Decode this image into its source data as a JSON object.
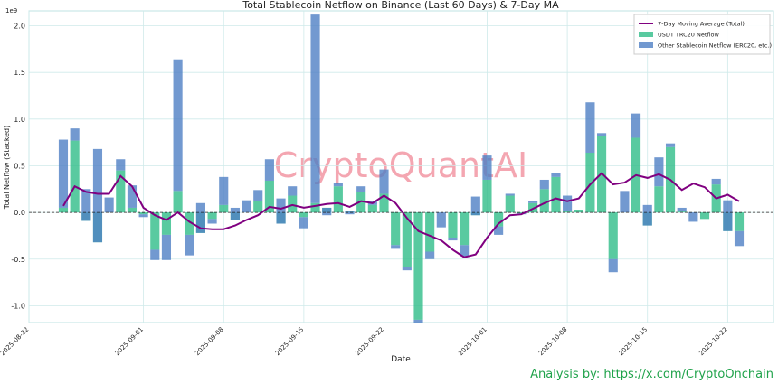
{
  "chart_data": {
    "type": "stacked_bar_line",
    "title": "Total Stablecoin Netflow on Binance (Last 60 Days) & 7-Day MA",
    "x_label": "Date",
    "y_label": "Total Netflow (Stacked)",
    "y_offset_label": "1e9",
    "watermark": "CryptoQuantAI",
    "footer": "Analysis by: https://x.com/CryptoOnchain",
    "legend": "upper right",
    "grid": true,
    "x": [
      "2025-08-25",
      "2025-08-26",
      "2025-08-27",
      "2025-08-28",
      "2025-08-29",
      "2025-08-30",
      "2025-08-31",
      "2025-09-01",
      "2025-09-02",
      "2025-09-03",
      "2025-09-04",
      "2025-09-05",
      "2025-09-06",
      "2025-09-07",
      "2025-09-08",
      "2025-09-09",
      "2025-09-10",
      "2025-09-11",
      "2025-09-12",
      "2025-09-13",
      "2025-09-14",
      "2025-09-15",
      "2025-09-16",
      "2025-09-17",
      "2025-09-18",
      "2025-09-19",
      "2025-09-20",
      "2025-09-21",
      "2025-09-22",
      "2025-09-23",
      "2025-09-24",
      "2025-09-25",
      "2025-09-26",
      "2025-09-27",
      "2025-09-28",
      "2025-09-29",
      "2025-09-30",
      "2025-10-01",
      "2025-10-02",
      "2025-10-03",
      "2025-10-04",
      "2025-10-05",
      "2025-10-06",
      "2025-10-07",
      "2025-10-08",
      "2025-10-09",
      "2025-10-10",
      "2025-10-11",
      "2025-10-12",
      "2025-10-13",
      "2025-10-14",
      "2025-10-15",
      "2025-10-16",
      "2025-10-17",
      "2025-10-18",
      "2025-10-19",
      "2025-10-20",
      "2025-10-21",
      "2025-10-22",
      "2025-10-23"
    ],
    "series": [
      {
        "name": "USDT TRC20 Netflow",
        "kind": "bar",
        "color": "#2fbd88",
        "values": [
          0.05,
          0.77,
          -0.09,
          -0.32,
          0.0,
          0.45,
          0.05,
          -0.02,
          -0.4,
          -0.24,
          0.23,
          -0.24,
          -0.22,
          -0.07,
          0.08,
          -0.08,
          0.0,
          0.12,
          0.34,
          -0.12,
          0.18,
          -0.05,
          0.1,
          0.05,
          0.28,
          0.01,
          0.22,
          0.08,
          0.2,
          -0.35,
          -0.58,
          -1.15,
          -0.42,
          0.0,
          -0.27,
          -0.35,
          -0.03,
          0.35,
          -0.15,
          0.18,
          -0.01,
          0.1,
          0.25,
          0.38,
          0.02,
          0.03,
          0.64,
          0.82,
          -0.5,
          0.0,
          0.8,
          -0.14,
          0.28,
          0.7,
          0.01,
          0.0,
          -0.07,
          0.3,
          -0.2,
          -0.2
        ]
      },
      {
        "name": "Other Stablecoin Netflow (ERC20, etc.)",
        "kind": "bar",
        "color": "#4f7fc4",
        "values": [
          0.73,
          0.13,
          0.34,
          1.0,
          0.16,
          0.12,
          0.24,
          -0.03,
          -0.11,
          -0.27,
          1.41,
          -0.22,
          0.32,
          -0.05,
          0.3,
          0.13,
          0.13,
          0.12,
          0.23,
          0.27,
          0.1,
          -0.12,
          2.02,
          -0.08,
          0.04,
          -0.03,
          0.06,
          0.04,
          0.26,
          -0.04,
          -0.04,
          -0.03,
          -0.08,
          -0.16,
          -0.03,
          -0.12,
          0.2,
          0.26,
          -0.09,
          0.02,
          -0.01,
          0.02,
          0.1,
          0.04,
          0.16,
          0.0,
          0.54,
          0.03,
          -0.14,
          0.23,
          0.26,
          0.22,
          0.31,
          0.04,
          0.04,
          -0.1,
          0.0,
          0.06,
          0.33,
          -0.16
        ]
      },
      {
        "name": "7-Day Moving Average (Total)",
        "kind": "line",
        "color": "#800080",
        "values": [
          0.07,
          0.28,
          0.22,
          0.2,
          0.2,
          0.39,
          0.28,
          0.05,
          -0.03,
          -0.08,
          0.0,
          -0.1,
          -0.17,
          -0.18,
          -0.18,
          -0.14,
          -0.08,
          -0.03,
          0.06,
          0.04,
          0.08,
          0.05,
          0.07,
          0.09,
          0.1,
          0.06,
          0.12,
          0.1,
          0.18,
          0.1,
          -0.06,
          -0.2,
          -0.25,
          -0.3,
          -0.4,
          -0.48,
          -0.45,
          -0.27,
          -0.12,
          -0.03,
          -0.02,
          0.04,
          0.1,
          0.15,
          0.12,
          0.15,
          0.3,
          0.42,
          0.3,
          0.32,
          0.4,
          0.37,
          0.41,
          0.35,
          0.24,
          0.31,
          0.27,
          0.15,
          0.19,
          0.12
        ]
      }
    ],
    "xlim": [
      "2025-08-22",
      "2025-10-26"
    ],
    "xticks": [
      "2025-08-22",
      "2025-09-01",
      "2025-09-08",
      "2025-09-15",
      "2025-09-22",
      "2025-10-01",
      "2025-10-08",
      "2025-10-15",
      "2025-10-22"
    ],
    "ylim": [
      -1.18,
      2.16
    ],
    "yticks": [
      {
        "value": -1,
        "label": "-1.0"
      },
      -0.5,
      {
        "value": 0,
        "label": "0.0"
      },
      0.5,
      {
        "value": 1,
        "label": "1.0"
      },
      1.5,
      {
        "value": 2,
        "label": "2.0"
      }
    ]
  }
}
